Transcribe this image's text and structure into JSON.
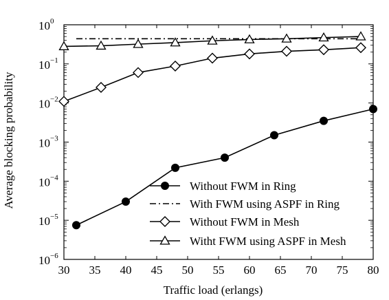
{
  "chart_data": {
    "type": "line",
    "xlabel": "Traffic load (erlangs)",
    "ylabel": "Average blocking probability",
    "xlim": [
      30,
      80
    ],
    "ylim_log10": [
      -6,
      0
    ],
    "y_scale": "log",
    "x_ticks": [
      "30",
      "35",
      "40",
      "45",
      "50",
      "55",
      "60",
      "65",
      "70",
      "75",
      "80"
    ],
    "y_tick_base": "10",
    "y_tick_exponents": [
      "0",
      "−1",
      "−2",
      "−3",
      "−4",
      "−5",
      "−6"
    ],
    "grid": false,
    "legend_position": "bottom-right",
    "series": [
      {
        "name": "Without FWM in Ring",
        "marker": "filled-circle",
        "line_style": "solid",
        "x": [
          32,
          40,
          48,
          56,
          64,
          72,
          80
        ],
        "y": [
          7.5e-06,
          3e-05,
          0.00022,
          0.0004,
          0.0015,
          0.0035,
          0.007
        ]
      },
      {
        "name": "With FWM using ASPF in Ring",
        "marker": "none",
        "line_style": "dash-dot",
        "x": [
          32,
          78
        ],
        "y": [
          0.44,
          0.44
        ]
      },
      {
        "name": "Without FWM in Mesh",
        "marker": "open-diamond",
        "line_style": "solid",
        "x": [
          30,
          36,
          42,
          48,
          54,
          60,
          66,
          72,
          78
        ],
        "y": [
          0.011,
          0.025,
          0.06,
          0.088,
          0.14,
          0.18,
          0.21,
          0.23,
          0.26
        ]
      },
      {
        "name": "Witht FWM using ASPF in Mesh",
        "marker": "open-triangle",
        "line_style": "solid",
        "x": [
          30,
          36,
          42,
          48,
          54,
          60,
          66,
          72,
          78
        ],
        "y": [
          0.28,
          0.29,
          0.32,
          0.35,
          0.39,
          0.42,
          0.44,
          0.47,
          0.5
        ]
      }
    ]
  }
}
